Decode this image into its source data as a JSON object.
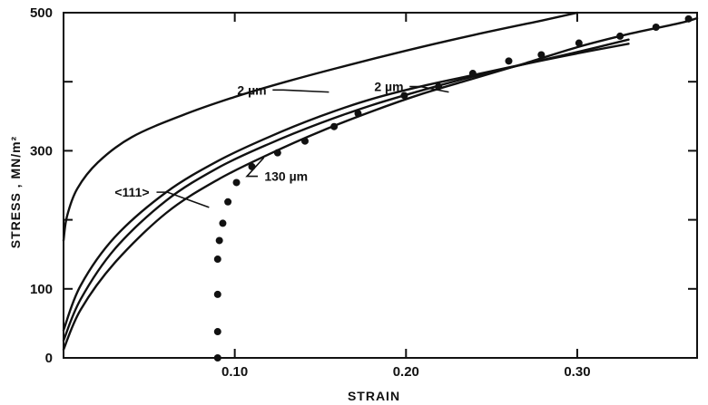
{
  "chart_data": {
    "type": "line",
    "xlabel": "STRAIN",
    "ylabel": "STRESS ,  MN/m²",
    "xlim": [
      0.0,
      0.37
    ],
    "ylim": [
      0,
      500
    ],
    "x_ticks": [
      0.1,
      0.2,
      0.3
    ],
    "x_tick_labels": [
      "0.10",
      "0.20",
      "0.30"
    ],
    "y_ticks": [
      0,
      100,
      300,
      500
    ],
    "y_tick_labels": [
      "0",
      "100",
      "300",
      "500"
    ],
    "y_minor_ticks": [
      200,
      400
    ],
    "grid": false,
    "series": [
      {
        "style": "solid",
        "x": [
          0.0,
          0.002,
          0.008,
          0.02,
          0.04,
          0.07,
          0.1,
          0.13,
          0.16,
          0.2,
          0.24,
          0.28,
          0.3
        ],
        "y": [
          170,
          205,
          245,
          283,
          320,
          352,
          378,
          400,
          420,
          445,
          468,
          489,
          500
        ]
      },
      {
        "style": "solid",
        "x": [
          0.0,
          0.01,
          0.03,
          0.06,
          0.09,
          0.12,
          0.15,
          0.18,
          0.21,
          0.24,
          0.27,
          0.3,
          0.33
        ],
        "y": [
          40,
          105,
          175,
          240,
          285,
          320,
          350,
          375,
          394,
          410,
          426,
          441,
          455
        ]
      },
      {
        "style": "solid",
        "x": [
          0.0,
          0.01,
          0.03,
          0.06,
          0.09,
          0.12,
          0.15,
          0.18,
          0.21,
          0.24,
          0.27,
          0.3,
          0.33
        ],
        "y": [
          25,
          85,
          158,
          228,
          275,
          310,
          340,
          366,
          388,
          408,
          426,
          443,
          461
        ]
      },
      {
        "style": "solid",
        "x": [
          0.0,
          0.01,
          0.03,
          0.06,
          0.09,
          0.12,
          0.15,
          0.18,
          0.21,
          0.24,
          0.27,
          0.3,
          0.33,
          0.36,
          0.37
        ],
        "y": [
          12,
          70,
          138,
          210,
          258,
          295,
          328,
          357,
          383,
          405,
          427,
          450,
          469,
          485,
          492
        ]
      },
      {
        "style": "markers",
        "x": [
          0.09,
          0.09,
          0.09,
          0.09,
          0.091,
          0.093,
          0.096,
          0.101,
          0.11,
          0.125,
          0.141,
          0.158,
          0.172,
          0.199,
          0.219,
          0.239,
          0.26,
          0.279,
          0.301,
          0.325,
          0.346,
          0.365
        ],
        "y": [
          0,
          38,
          92,
          143,
          170,
          195,
          226,
          254,
          277,
          297,
          314,
          335,
          354,
          380,
          393,
          412,
          430,
          439,
          456,
          466,
          479,
          491
        ]
      }
    ],
    "annotations": [
      {
        "text": "2 µm",
        "x": 0.11,
        "y": 388,
        "target_x": 0.155,
        "target_y": 385
      },
      {
        "text": "2 µm",
        "x": 0.19,
        "y": 393,
        "target_x": 0.225,
        "target_y": 385
      },
      {
        "text": "<111>",
        "x": 0.04,
        "y": 240,
        "target_x": 0.085,
        "target_y": 218
      },
      {
        "text": "130 µm",
        "x": 0.13,
        "y": 263,
        "target_x": 0.117,
        "target_y": 290
      }
    ]
  }
}
